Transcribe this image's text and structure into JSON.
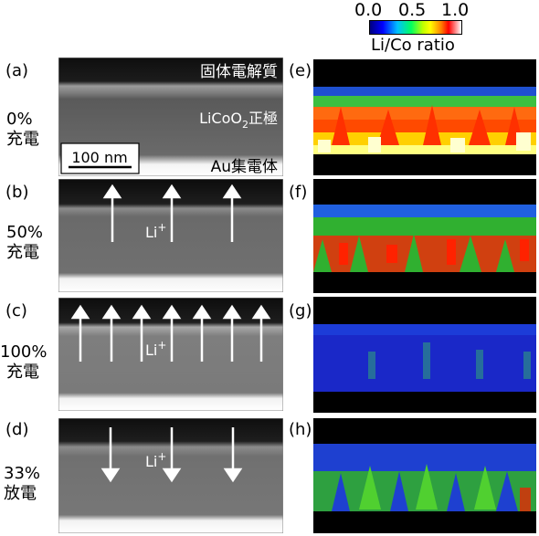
{
  "colorbar": {
    "ticks": [
      "0.0",
      "0.5",
      "1.0"
    ],
    "label": "Li/Co ratio"
  },
  "panels": [
    {
      "letter": "(a)",
      "side_top": "0%",
      "side_bottom": "充電"
    },
    {
      "letter": "(b)",
      "side_top": "50%",
      "side_bottom": "充電"
    },
    {
      "letter": "(c)",
      "side_top": "100%",
      "side_bottom": "充電"
    },
    {
      "letter": "(d)",
      "side_top": "33%",
      "side_bottom": "放電"
    }
  ],
  "map_letters": [
    "(e)",
    "(f)",
    "(g)",
    "(h)"
  ],
  "annotations": {
    "electrolyte": "固体電解質",
    "cathode_main": "LiCoO",
    "cathode_sub": "2",
    "cathode_suffix": "正極",
    "collector": "Au集電体",
    "scalebar": "100 nm",
    "ion": "Li",
    "ion_charge": "+"
  },
  "arrows": {
    "b": "up",
    "c": "up",
    "d": "down"
  },
  "maps": {
    "e": {
      "li_co_ratio": 0.85
    },
    "f": {
      "li_co_ratio": 0.55
    },
    "g": {
      "li_co_ratio": 0.15
    },
    "h": {
      "li_co_ratio": 0.35
    }
  },
  "colors": {
    "colorbar_stops": [
      "#000080",
      "#0000ff",
      "#00ffff",
      "#00ff00",
      "#ffff00",
      "#ff8000",
      "#ff0000",
      "#ffffff"
    ]
  }
}
